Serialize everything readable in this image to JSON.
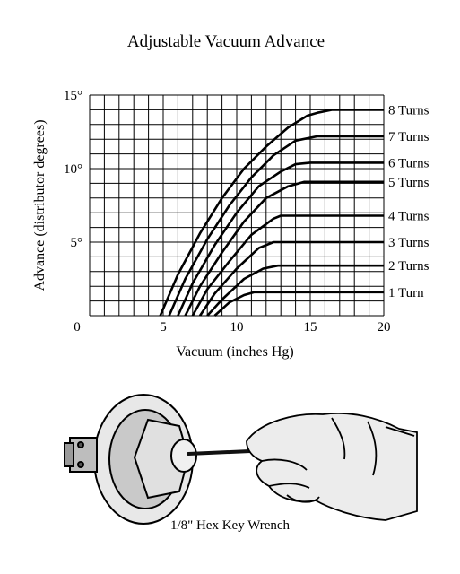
{
  "chart_data": {
    "type": "line",
    "title": "Adjustable Vacuum Advance",
    "xlabel": "Vacuum (inches Hg)",
    "ylabel": "Advance (distributor degrees)",
    "xlim": [
      0,
      20
    ],
    "ylim": [
      0,
      15
    ],
    "x_ticks": [
      {
        "value": 0,
        "label": "0"
      },
      {
        "value": 5,
        "label": "5"
      },
      {
        "value": 10,
        "label": "10"
      },
      {
        "value": 15,
        "label": "15"
      },
      {
        "value": 20,
        "label": "20"
      }
    ],
    "y_ticks": [
      {
        "value": 5,
        "label": "5°"
      },
      {
        "value": 10,
        "label": "10°"
      },
      {
        "value": 15,
        "label": "15°"
      }
    ],
    "grid": true,
    "grid_x_step": 1,
    "grid_y_step": 1,
    "grid_x_start": 0,
    "series": [
      {
        "name": "8 Turns",
        "points": [
          [
            4.8,
            0
          ],
          [
            6,
            2.8
          ],
          [
            7.5,
            5.6
          ],
          [
            9,
            8
          ],
          [
            10.5,
            10
          ],
          [
            12,
            11.5
          ],
          [
            13.5,
            12.8
          ],
          [
            14.8,
            13.6
          ],
          [
            15.5,
            13.8
          ],
          [
            16.5,
            14
          ],
          [
            20,
            14
          ]
        ]
      },
      {
        "name": "7 Turns",
        "points": [
          [
            5.4,
            0
          ],
          [
            6.5,
            2.5
          ],
          [
            8,
            5.2
          ],
          [
            9.5,
            7.5
          ],
          [
            11,
            9.4
          ],
          [
            12.5,
            10.9
          ],
          [
            14,
            11.9
          ],
          [
            15.5,
            12.2
          ],
          [
            16,
            12.2
          ],
          [
            20,
            12.2
          ]
        ]
      },
      {
        "name": "6 Turns",
        "points": [
          [
            6,
            0
          ],
          [
            7,
            2.2
          ],
          [
            8.5,
            4.8
          ],
          [
            10,
            7
          ],
          [
            11.5,
            8.8
          ],
          [
            13,
            9.8
          ],
          [
            14,
            10.3
          ],
          [
            15,
            10.4
          ],
          [
            20,
            10.4
          ]
        ]
      },
      {
        "name": "5 Turns",
        "points": [
          [
            6.5,
            0
          ],
          [
            7.5,
            2
          ],
          [
            9,
            4.3
          ],
          [
            10.5,
            6.4
          ],
          [
            12,
            8
          ],
          [
            13.5,
            8.8
          ],
          [
            14.6,
            9.1
          ],
          [
            20,
            9.1
          ]
        ]
      },
      {
        "name": "4 Turns",
        "points": [
          [
            7,
            0
          ],
          [
            8,
            1.8
          ],
          [
            9.5,
            3.7
          ],
          [
            11,
            5.5
          ],
          [
            12.5,
            6.6
          ],
          [
            13,
            6.8
          ],
          [
            20,
            6.8
          ]
        ]
      },
      {
        "name": "3 Turns",
        "points": [
          [
            7.5,
            0
          ],
          [
            8.5,
            1.5
          ],
          [
            10,
            3.2
          ],
          [
            11.5,
            4.6
          ],
          [
            12.5,
            5
          ],
          [
            20,
            5
          ]
        ]
      },
      {
        "name": "2 Turns",
        "points": [
          [
            8,
            0
          ],
          [
            9,
            1.1
          ],
          [
            10.5,
            2.5
          ],
          [
            11.8,
            3.2
          ],
          [
            12.8,
            3.4
          ],
          [
            20,
            3.4
          ]
        ]
      },
      {
        "name": "1 Turn",
        "points": [
          [
            8.5,
            0
          ],
          [
            9.5,
            0.9
          ],
          [
            10.5,
            1.4
          ],
          [
            11.2,
            1.6
          ],
          [
            20,
            1.6
          ]
        ]
      }
    ]
  },
  "caption": "1/8\" Hex Key Wrench"
}
